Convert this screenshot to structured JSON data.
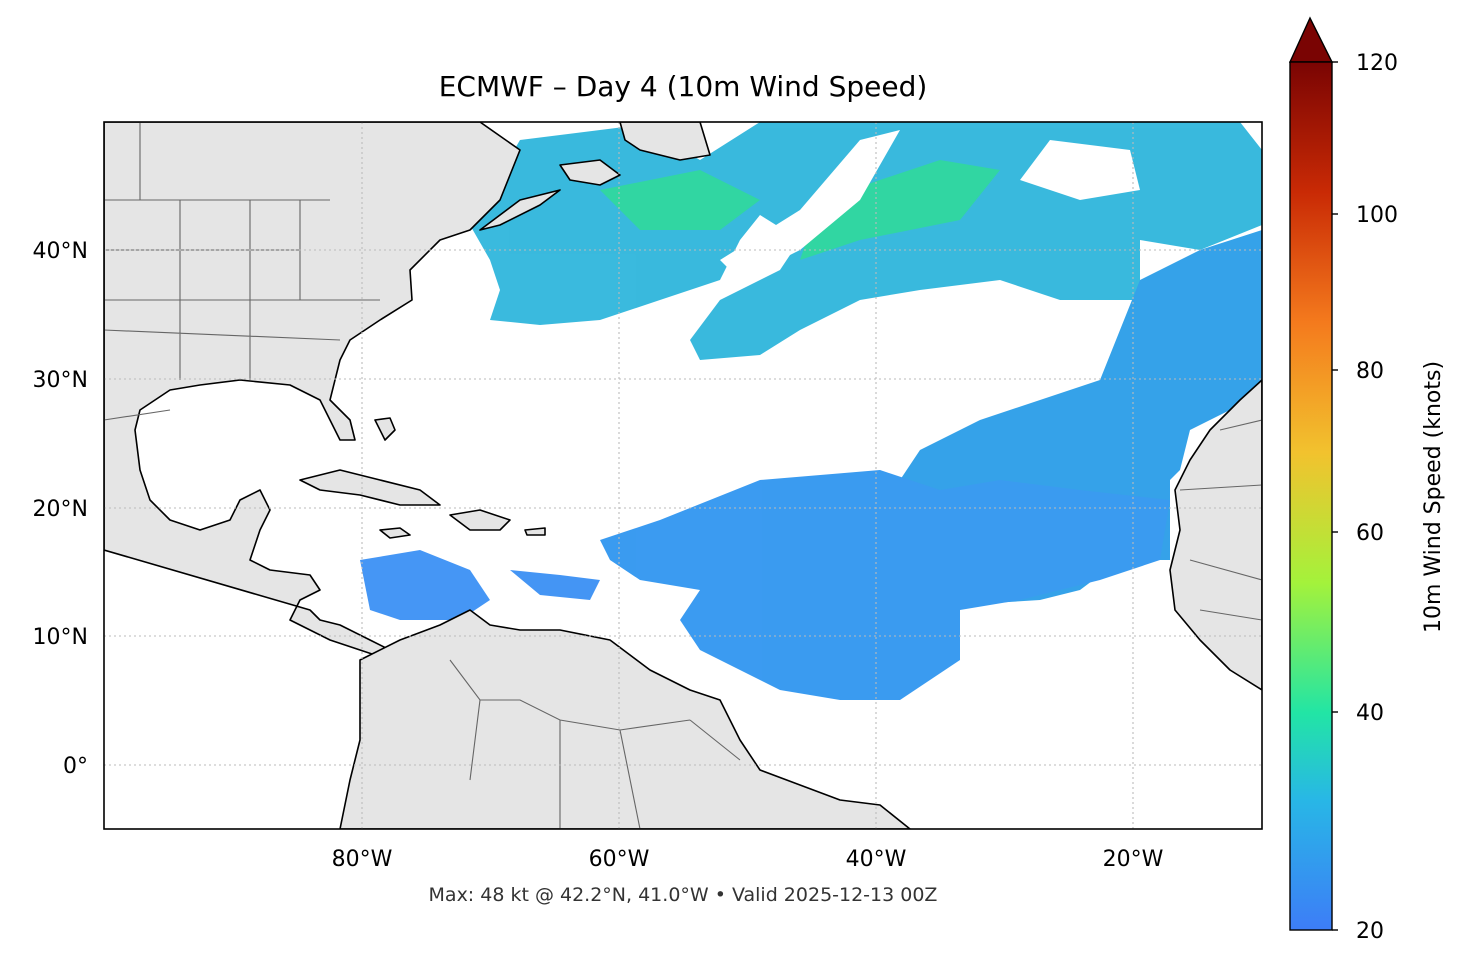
{
  "title": "ECMWF – Day 4 (10m Wind Speed)",
  "footer": "Max: 48 kt @ 42.2°N, 41.0°W • Valid 2025-12-13 00Z",
  "map": {
    "lat_labels": [
      "40°N",
      "30°N",
      "20°N",
      "10°N",
      "0°"
    ],
    "lon_labels": [
      "80°W",
      "60°W",
      "40°W",
      "20°W"
    ],
    "extent": {
      "lon_min": -100,
      "lon_max": -10,
      "lat_min": -5,
      "lat_max": 50
    },
    "colors": {
      "land": "#e5e5e5",
      "coast": "#000000",
      "borders": "#666666",
      "grid": "#bbbbbb"
    }
  },
  "colorbar": {
    "label": "10m Wind Speed (knots)",
    "ticks": [
      "120",
      "100",
      "80",
      "60",
      "40",
      "20"
    ],
    "min": 20,
    "max": 120,
    "extend": "max",
    "colors": [
      "#3d7df7",
      "#28b7e6",
      "#22e5a5",
      "#a4f23b",
      "#f2c22e",
      "#f47a1d",
      "#c92a05",
      "#7a0403"
    ]
  },
  "max_wind": {
    "value": 48,
    "lat": 42.2,
    "lon": -41.0
  }
}
